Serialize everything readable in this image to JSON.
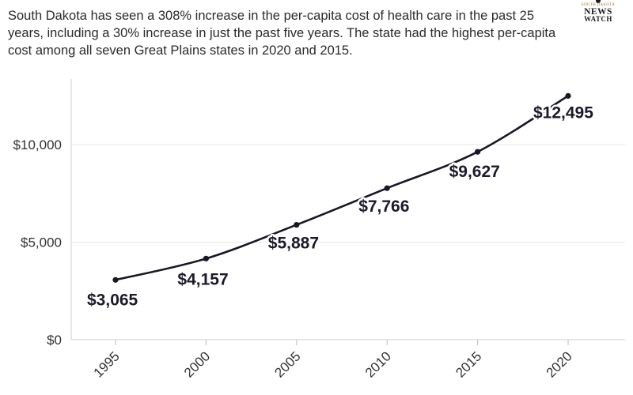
{
  "subtitle": "South Dakota has seen a 308% increase in the per-capita cost of health care in the past 25 years, including a 30% increase in just the past five years. The state had the highest per-capita cost among all seven Great Plains states in 2020 and 2015.",
  "logo": {
    "top": "SOUTH DAKOTA",
    "line1": "NEWS",
    "line2": "WATCH"
  },
  "colors": {
    "line": "#171726",
    "grid": "#e6e6e6",
    "axis": "#cccccc",
    "halo": "#ffffff"
  },
  "chart_data": {
    "type": "line",
    "title": "",
    "xlabel": "",
    "ylabel": "",
    "x": [
      1995,
      2000,
      2005,
      2010,
      2015,
      2020
    ],
    "series": [
      {
        "values": [
          3065,
          4157,
          5887,
          7766,
          9627,
          12495
        ]
      }
    ],
    "data_labels": [
      "$3,065",
      "$4,157",
      "$5,887",
      "$7,766",
      "$9,627",
      "$12,495"
    ],
    "y_ticks": [
      0,
      5000,
      10000
    ],
    "y_tick_labels": [
      "$0",
      "$5,000",
      "$10,000"
    ],
    "x_tick_labels": [
      "1995",
      "2000",
      "2005",
      "2010",
      "2015",
      "2020"
    ],
    "ylim": [
      0,
      12495
    ],
    "grid": true,
    "legend": "none"
  }
}
